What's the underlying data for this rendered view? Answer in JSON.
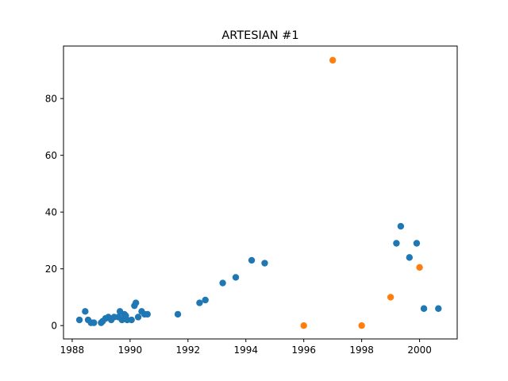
{
  "chart_data": {
    "type": "scatter",
    "title": "ARTESIAN #1",
    "xlabel": "",
    "ylabel": "",
    "xlim": [
      1987.7,
      2001.3
    ],
    "ylim": [
      -4.7,
      98.5
    ],
    "grid": false,
    "x_ticks": [
      1988,
      1990,
      1992,
      1994,
      1996,
      1998,
      2000
    ],
    "x_tick_labels": [
      "1988",
      "1990",
      "1992",
      "1994",
      "1996",
      "1998",
      "2000"
    ],
    "y_ticks": [
      0,
      20,
      40,
      60,
      80
    ],
    "y_tick_labels": [
      "0",
      "20",
      "40",
      "60",
      "80"
    ],
    "series": [
      {
        "name": "series-1",
        "color": "#1f77b4",
        "points": [
          [
            1988.25,
            2
          ],
          [
            1988.45,
            5
          ],
          [
            1988.55,
            2
          ],
          [
            1988.65,
            1
          ],
          [
            1988.75,
            1
          ],
          [
            1989.0,
            1
          ],
          [
            1989.05,
            1.5
          ],
          [
            1989.15,
            2.5
          ],
          [
            1989.25,
            3
          ],
          [
            1989.35,
            2
          ],
          [
            1989.45,
            3
          ],
          [
            1989.6,
            3
          ],
          [
            1989.65,
            5
          ],
          [
            1989.72,
            2
          ],
          [
            1989.8,
            4
          ],
          [
            1989.85,
            3.5
          ],
          [
            1989.9,
            2
          ],
          [
            1990.05,
            2
          ],
          [
            1990.15,
            7
          ],
          [
            1990.2,
            8
          ],
          [
            1990.28,
            3
          ],
          [
            1990.4,
            5
          ],
          [
            1990.5,
            4
          ],
          [
            1990.6,
            4
          ],
          [
            1991.65,
            4
          ],
          [
            1992.4,
            8
          ],
          [
            1992.6,
            9
          ],
          [
            1993.2,
            15
          ],
          [
            1993.65,
            17
          ],
          [
            1994.2,
            23
          ],
          [
            1994.65,
            22
          ],
          [
            1999.2,
            29
          ],
          [
            1999.35,
            35
          ],
          [
            1999.65,
            24
          ],
          [
            1999.9,
            29
          ],
          [
            2000.15,
            6
          ],
          [
            2000.65,
            6
          ]
        ]
      },
      {
        "name": "series-2",
        "color": "#ff7f0e",
        "points": [
          [
            1996.0,
            0
          ],
          [
            1997.0,
            93.5
          ],
          [
            1998.0,
            0
          ],
          [
            1999.0,
            10
          ],
          [
            2000.0,
            20.5
          ]
        ]
      }
    ]
  }
}
